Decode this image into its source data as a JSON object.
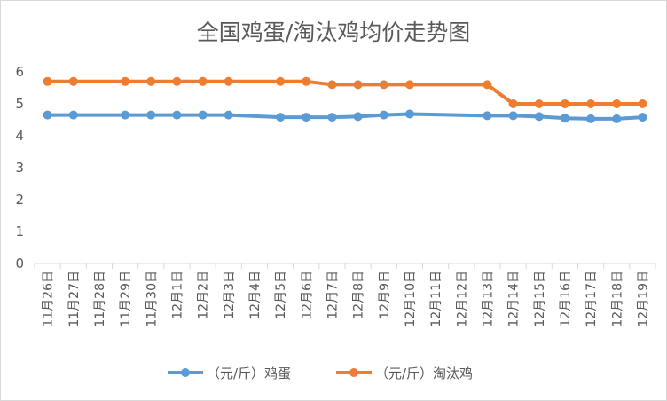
{
  "chart_data": {
    "type": "line",
    "title": "全国鸡蛋/淘汰鸡均价走势图",
    "xlabel": "",
    "ylabel": "",
    "ylim": [
      0,
      6
    ],
    "yticks": [
      0,
      1,
      2,
      3,
      4,
      5,
      6
    ],
    "grid": false,
    "legend_position": "bottom",
    "categories": [
      "11月26日",
      "11月27日",
      "11月28日",
      "11月29日",
      "11月30日",
      "12月1日",
      "12月2日",
      "12月3日",
      "12月4日",
      "12月5日",
      "12月6日",
      "12月7日",
      "12月8日",
      "12月9日",
      "12月10日",
      "12月11日",
      "12月12日",
      "12月13日",
      "12月14日",
      "12月15日",
      "12月16日",
      "12月17日",
      "12月18日",
      "12月19日"
    ],
    "series": [
      {
        "name": "（元/斤）鸡蛋",
        "color": "#5B9BD5",
        "values": [
          4.65,
          4.65,
          null,
          4.65,
          4.65,
          4.65,
          4.65,
          4.65,
          null,
          4.58,
          4.58,
          4.58,
          4.6,
          4.65,
          4.68,
          null,
          null,
          4.63,
          4.63,
          4.6,
          4.55,
          4.53,
          4.53,
          4.58
        ]
      },
      {
        "name": "（元/斤）淘汰鸡",
        "color": "#ED7D31",
        "values": [
          5.7,
          5.7,
          null,
          5.7,
          5.7,
          5.7,
          5.7,
          5.7,
          null,
          5.7,
          5.7,
          5.6,
          5.6,
          5.6,
          5.6,
          null,
          null,
          5.6,
          5.0,
          5.0,
          5.0,
          5.0,
          5.0,
          5.0
        ]
      }
    ]
  }
}
